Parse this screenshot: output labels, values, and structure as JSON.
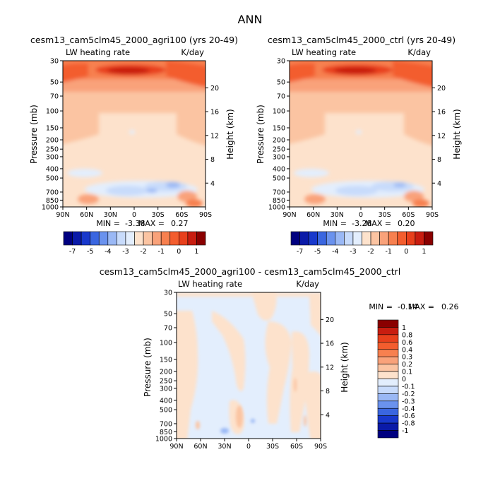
{
  "figure_title": "ANN",
  "colors": {
    "blue_ramp": [
      "#000080",
      "#0a1aa8",
      "#1838cc",
      "#3a66e0",
      "#6a92ee",
      "#9ab8f5",
      "#c8dbfb",
      "#e3eefd"
    ],
    "red_ramp": [
      "#fde2cc",
      "#fbc4a2",
      "#f9a27a",
      "#f7804f",
      "#f35d2e",
      "#e8401c",
      "#c81d10",
      "#8a0000"
    ]
  },
  "chart_data": [
    {
      "type": "heatmap",
      "title": "cesm13_cam5clm45_2000_agri100 (yrs 20-49)",
      "left_label": "LW heating rate",
      "right_label": "K/day",
      "ylabel": "Pressure (mb)",
      "ylabel_right": "Height (km)",
      "x_ticks": [
        "90N",
        "60N",
        "30N",
        "0",
        "30S",
        "60S",
        "90S"
      ],
      "y_ticks": [
        "30",
        "50",
        "70",
        "100",
        "150",
        "200",
        "250",
        "300",
        "400",
        "500",
        "700",
        "850",
        "1000"
      ],
      "y_ticks_right": [
        "20",
        "16",
        "12",
        "8",
        "4"
      ],
      "stats": {
        "min_label": "MIN =",
        "min": "-3.38",
        "max_label": "MAX =",
        "max": "0.27"
      },
      "colorbar": {
        "orientation": "horizontal",
        "labels": [
          "-7",
          "-5",
          "-4",
          "-3",
          "-2",
          "-1",
          "0",
          "1"
        ]
      }
    },
    {
      "type": "heatmap",
      "title": "cesm13_cam5clm45_2000_ctrl (yrs 20-49)",
      "left_label": "LW heating rate",
      "right_label": "K/day",
      "ylabel": "Pressure (mb)",
      "ylabel_right": "Height (km)",
      "x_ticks": [
        "90N",
        "60N",
        "30N",
        "0",
        "30S",
        "60S",
        "90S"
      ],
      "y_ticks": [
        "30",
        "50",
        "70",
        "100",
        "150",
        "200",
        "250",
        "300",
        "400",
        "500",
        "700",
        "850",
        "1000"
      ],
      "y_ticks_right": [
        "20",
        "16",
        "12",
        "8",
        "4"
      ],
      "stats": {
        "min_label": "MIN =",
        "min": "-3.28",
        "max_label": "MAX =",
        "max": "0.20"
      },
      "colorbar": {
        "orientation": "horizontal",
        "labels": [
          "-7",
          "-5",
          "-4",
          "-3",
          "-2",
          "-1",
          "0",
          "1"
        ]
      }
    },
    {
      "type": "heatmap",
      "title": "cesm13_cam5clm45_2000_agri100 - cesm13_cam5clm45_2000_ctrl",
      "left_label": "LW heating rate",
      "right_label": "K/day",
      "ylabel": "Pressure (mb)",
      "ylabel_right": "Height (km)",
      "x_ticks": [
        "90N",
        "60N",
        "30N",
        "0",
        "30S",
        "60S",
        "90S"
      ],
      "y_ticks": [
        "30",
        "50",
        "70",
        "100",
        "150",
        "200",
        "250",
        "300",
        "400",
        "500",
        "700",
        "850",
        "1000"
      ],
      "y_ticks_right": [
        "20",
        "16",
        "12",
        "8",
        "4"
      ],
      "stats": {
        "min_label": "MIN =",
        "min": "-0.14",
        "max_label": "MAX =",
        "max": "0.26"
      },
      "colorbar": {
        "orientation": "vertical",
        "labels": [
          "1",
          "0.8",
          "0.6",
          "0.4",
          "0.3",
          "0.2",
          "0.1",
          "0",
          "-0.1",
          "-0.2",
          "-0.3",
          "-0.4",
          "-0.6",
          "-0.8",
          "-1"
        ]
      }
    }
  ]
}
